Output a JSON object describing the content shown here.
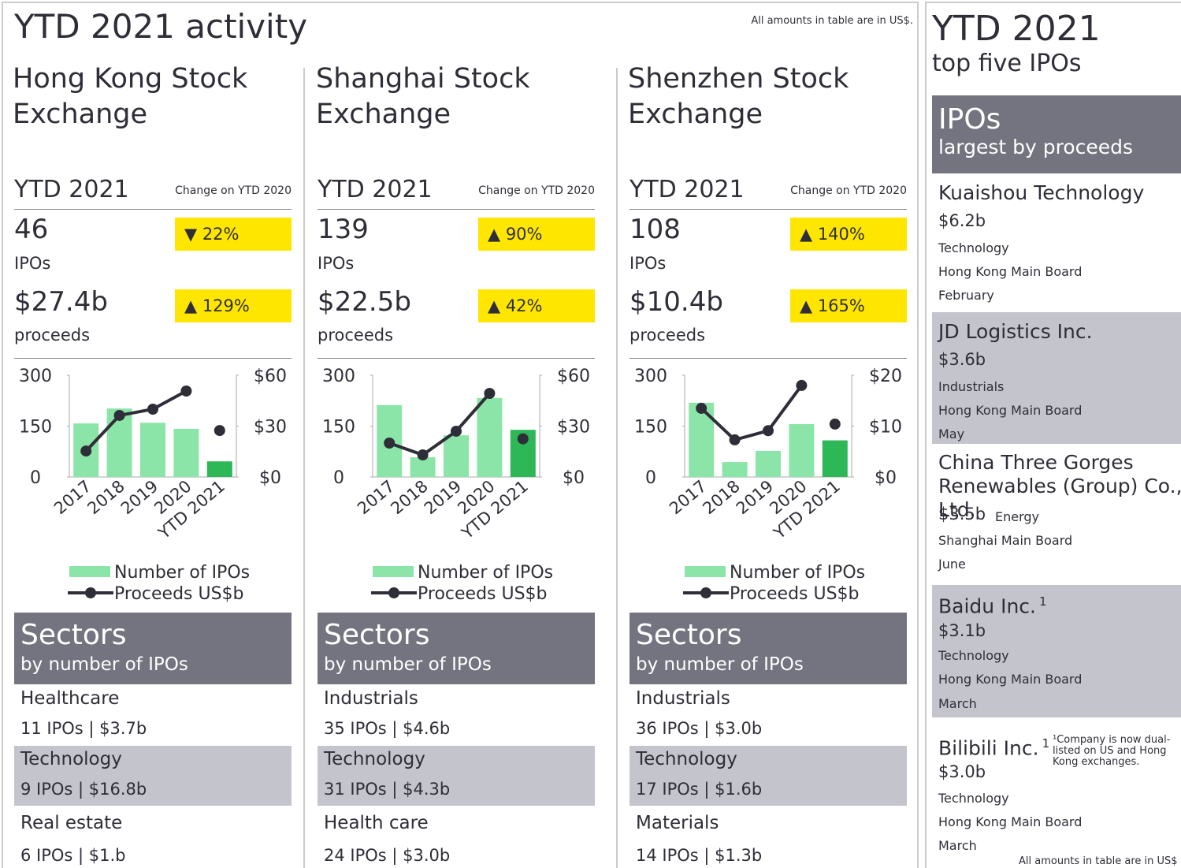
{
  "header": {
    "title": "YTD 2021 activity",
    "note": "All amounts in table are in US$."
  },
  "panels": [
    {
      "name": "Hong Kong Stock Exchange",
      "ytd_label": "YTD 2021",
      "change_label": "Change on YTD 2020",
      "ipos": "46",
      "ipos_unit": "IPOs",
      "ipos_change": "▼  22%",
      "proceeds": "$27.4b",
      "proceeds_unit": "proceeds",
      "proceeds_change": "▲  129%",
      "sectors": {
        "title": "Sectors",
        "subtitle": "by number of IPOs",
        "items": [
          {
            "name": "Healthcare",
            "detail": "11 IPOs | $3.7b"
          },
          {
            "name": "Technology",
            "detail": "9 IPOs | $16.8b"
          },
          {
            "name": "Real estate",
            "detail": "6 IPOs | $1.b"
          }
        ]
      }
    },
    {
      "name": "Shanghai Stock Exchange",
      "ytd_label": "YTD 2021",
      "change_label": "Change on YTD 2020",
      "ipos": "139",
      "ipos_unit": "IPOs",
      "ipos_change": "▲  90%",
      "proceeds": "$22.5b",
      "proceeds_unit": "proceeds",
      "proceeds_change": "▲  42%",
      "sectors": {
        "title": "Sectors",
        "subtitle": "by number of IPOs",
        "items": [
          {
            "name": "Industrials",
            "detail": "35 IPOs | $4.6b"
          },
          {
            "name": "Technology",
            "detail": "31 IPOs |  $4.3b"
          },
          {
            "name": "Health care",
            "detail": "24 IPOs | $3.0b"
          }
        ]
      }
    },
    {
      "name": "Shenzhen Stock Exchange",
      "ytd_label": "YTD 2021",
      "change_label": "Change on YTD 2020",
      "ipos": "108",
      "ipos_unit": "IPOs",
      "ipos_change": "▲  140%",
      "proceeds": "$10.4b",
      "proceeds_unit": "proceeds",
      "proceeds_change": "▲  165%",
      "sectors": {
        "title": "Sectors",
        "subtitle": "by number of IPOs",
        "items": [
          {
            "name": "Industrials",
            "detail": "36 IPOs | $3.0b"
          },
          {
            "name": "Technology",
            "detail": "17 IPOs | $1.6b"
          },
          {
            "name": "Materials",
            "detail": "14 IPOs | $1.3b"
          }
        ]
      }
    }
  ],
  "chart_data": [
    {
      "type": "bar-line",
      "categories": [
        "2017",
        "2018",
        "2019",
        "2020",
        "YTD 2021"
      ],
      "ylim": [
        0,
        300
      ],
      "yticks": [
        0,
        150,
        300
      ],
      "y2lim": [
        0,
        60
      ],
      "y2ticks": [
        {
          "value": 0,
          "label": "$0"
        },
        {
          "value": 30,
          "label": "$30"
        },
        {
          "value": 60,
          "label": "$60"
        }
      ],
      "series": [
        {
          "name": "Number of IPOs",
          "color": "#8ce5a8",
          "highlight_color": "#2db757",
          "values": [
            158,
            202,
            160,
            142,
            46
          ]
        },
        {
          "name": "Proceeds US$b",
          "color": "#2e2e38",
          "axis": "y2",
          "values": [
            15.3,
            36.3,
            40,
            50.7,
            27.4
          ]
        }
      ]
    },
    {
      "type": "bar-line",
      "categories": [
        "2017",
        "2018",
        "2019",
        "2020",
        "YTD 2021"
      ],
      "ylim": [
        0,
        300
      ],
      "yticks": [
        0,
        150,
        300
      ],
      "y2lim": [
        0,
        60
      ],
      "y2ticks": [
        {
          "value": 0,
          "label": "$0"
        },
        {
          "value": 30,
          "label": "$30"
        },
        {
          "value": 60,
          "label": "$60"
        }
      ],
      "series": [
        {
          "name": "Number of IPOs",
          "color": "#8ce5a8",
          "highlight_color": "#2db757",
          "values": [
            212,
            58,
            123,
            233,
            139
          ]
        },
        {
          "name": "Proceeds US$b",
          "color": "#2e2e38",
          "axis": "y2",
          "values": [
            20,
            13,
            27,
            49.3,
            22.5
          ]
        }
      ]
    },
    {
      "type": "bar-line",
      "categories": [
        "2017",
        "2018",
        "2019",
        "2020",
        "YTD 2021"
      ],
      "ylim": [
        0,
        300
      ],
      "yticks": [
        0,
        150,
        300
      ],
      "y2lim": [
        0,
        20
      ],
      "y2ticks": [
        {
          "value": 0,
          "label": "$0"
        },
        {
          "value": 10,
          "label": "$10"
        },
        {
          "value": 20,
          "label": "$20"
        }
      ],
      "series": [
        {
          "name": "Number of IPOs",
          "color": "#8ce5a8",
          "highlight_color": "#2db757",
          "values": [
            219,
            44,
            77,
            156,
            108
          ]
        },
        {
          "name": "Proceeds US$b",
          "color": "#2e2e38",
          "axis": "y2",
          "values": [
            13.5,
            7.3,
            9.1,
            18,
            10.4
          ]
        }
      ]
    }
  ],
  "top_ipos": {
    "title": "YTD 2021",
    "subtitle": "top five IPOs",
    "box_title": "IPOs",
    "box_subtitle": "largest by proceeds",
    "items": [
      {
        "name": "Kuaishou Technology",
        "proceeds": "$6.2b",
        "sector": "Technology",
        "board": "Hong Kong Main Board",
        "month": "February"
      },
      {
        "name": "JD Logistics Inc.",
        "proceeds": "$3.6b",
        "sector": "Industrials",
        "board": "Hong Kong Main Board",
        "month": "May"
      },
      {
        "name": "China Three Gorges Renewables (Group) Co., Ltd.",
        "proceeds": "$3.5b",
        "sector": "Energy",
        "board": "Shanghai Main Board",
        "month": "June"
      },
      {
        "name": "Baidu Inc.",
        "note_mark": "1",
        "proceeds": "$3.1b",
        "sector": "Technology",
        "board": "Hong Kong Main Board",
        "month": "March"
      },
      {
        "name": "Bilibili Inc.",
        "note_mark": "1",
        "proceeds": "$3.0b",
        "sector": "Technology",
        "board": "Hong Kong Main Board",
        "month": "March"
      }
    ],
    "footnote": "¹Company is now dual-listed on US and Hong Kong exchanges.",
    "note": "All amounts in table are in US$"
  }
}
